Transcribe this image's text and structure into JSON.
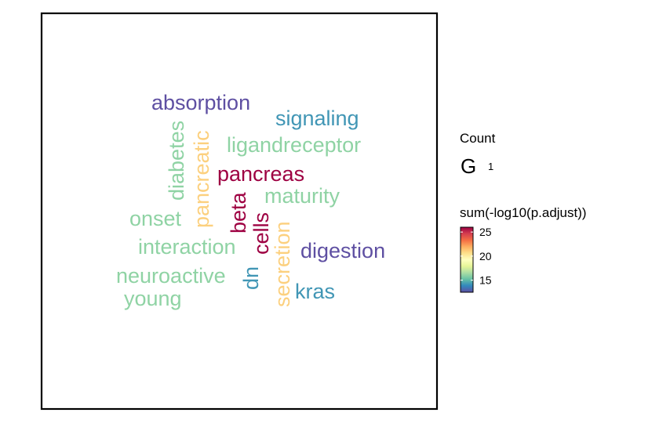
{
  "chart_data": {
    "type": "wordcloud",
    "words": [
      {
        "text": "absorption",
        "color": "#5e4fa2",
        "value": 13
      },
      {
        "text": "signaling",
        "color": "#4196b5",
        "value": 14
      },
      {
        "text": "ligandreceptor",
        "color": "#8fd3a4",
        "value": 17
      },
      {
        "text": "diabetes",
        "color": "#8fd3a4",
        "value": 17
      },
      {
        "text": "pancreatic",
        "color": "#fcd07e",
        "value": 19
      },
      {
        "text": "pancreas",
        "color": "#9e0142",
        "value": 25
      },
      {
        "text": "maturity",
        "color": "#8fd3a4",
        "value": 17
      },
      {
        "text": "onset",
        "color": "#8fd3a4",
        "value": 17
      },
      {
        "text": "beta",
        "color": "#9e0142",
        "value": 25
      },
      {
        "text": "cells",
        "color": "#9e0142",
        "value": 25
      },
      {
        "text": "secretion",
        "color": "#fcd07e",
        "value": 19
      },
      {
        "text": "interaction",
        "color": "#8fd3a4",
        "value": 17
      },
      {
        "text": "digestion",
        "color": "#5e4fa2",
        "value": 13
      },
      {
        "text": "dn",
        "color": "#4196b5",
        "value": 14
      },
      {
        "text": "neuroactive",
        "color": "#8fd3a4",
        "value": 17
      },
      {
        "text": "young",
        "color": "#8fd3a4",
        "value": 17
      },
      {
        "text": "kras",
        "color": "#4196b5",
        "value": 14
      }
    ],
    "legend": {
      "size_title": "Count",
      "size_glyph": "G",
      "size_values": [
        "1"
      ],
      "color_title": "sum(-log10(p.adjust))",
      "color_ticks": [
        "25",
        "20",
        "15"
      ],
      "color_tick_values": [
        25,
        20,
        15
      ],
      "color_range": [
        12.5,
        26
      ],
      "colormap": [
        "#5e4fa2",
        "#3288bd",
        "#66c2a5",
        "#abdda4",
        "#e6f598",
        "#ffffbf",
        "#fee08b",
        "#fdae61",
        "#f46d43",
        "#d53e4f",
        "#9e0142"
      ]
    }
  }
}
